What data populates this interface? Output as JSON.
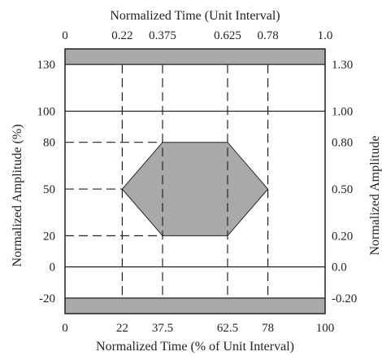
{
  "chart_data": {
    "type": "eye-mask",
    "top_axis_title": "Normalized Time (Unit Interval)",
    "bottom_axis_title": "Normalized Time (% of Unit Interval)",
    "left_axis_title": "Normalized Amplitude (%)",
    "right_axis_title": "Normalized Amplitude",
    "x_range": [
      0,
      100
    ],
    "y_range": [
      -30,
      140
    ],
    "top_ticks": [
      {
        "x": 0,
        "label": "0"
      },
      {
        "x": 22,
        "label": "0.22"
      },
      {
        "x": 37.5,
        "label": "0.375"
      },
      {
        "x": 62.5,
        "label": "0.625"
      },
      {
        "x": 78,
        "label": "0.78"
      },
      {
        "x": 100,
        "label": "1.0"
      }
    ],
    "bottom_ticks": [
      {
        "x": 0,
        "label": "0"
      },
      {
        "x": 22,
        "label": "22"
      },
      {
        "x": 37.5,
        "label": "37.5"
      },
      {
        "x": 62.5,
        "label": "62.5"
      },
      {
        "x": 78,
        "label": "78"
      },
      {
        "x": 100,
        "label": "100"
      }
    ],
    "left_ticks": [
      {
        "y": 130,
        "label": "130"
      },
      {
        "y": 100,
        "label": "100"
      },
      {
        "y": 80,
        "label": "80"
      },
      {
        "y": 50,
        "label": "50"
      },
      {
        "y": 20,
        "label": "20"
      },
      {
        "y": 0,
        "label": "0"
      },
      {
        "y": -20,
        "label": "-20"
      }
    ],
    "right_ticks": [
      {
        "y": 130,
        "label": "1.30"
      },
      {
        "y": 100,
        "label": "1.00"
      },
      {
        "y": 80,
        "label": "0.80"
      },
      {
        "y": 50,
        "label": "0.50"
      },
      {
        "y": 20,
        "label": "0.20"
      },
      {
        "y": 0,
        "label": "0.0"
      },
      {
        "y": -20,
        "label": "-0.20"
      }
    ],
    "mask_hexagon": [
      [
        22,
        50
      ],
      [
        37.5,
        80
      ],
      [
        62.5,
        80
      ],
      [
        78,
        50
      ],
      [
        62.5,
        20
      ],
      [
        37.5,
        20
      ]
    ],
    "upper_forbidden_region": [
      130,
      140
    ],
    "lower_forbidden_region": [
      -30,
      -20
    ],
    "solid_gridlines_y": [
      100,
      0
    ],
    "dashed_verticals_x": [
      22,
      37.5,
      62.5,
      78
    ],
    "dashed_horizontals": [
      {
        "y": 80,
        "x_from": 0,
        "x_to": 37.5
      },
      {
        "y": 50,
        "x_from": 0,
        "x_to": 22
      },
      {
        "y": 20,
        "x_from": 0,
        "x_to": 37.5
      }
    ],
    "mask_fill": "#a9a9a9",
    "grid_color": "#222222"
  }
}
